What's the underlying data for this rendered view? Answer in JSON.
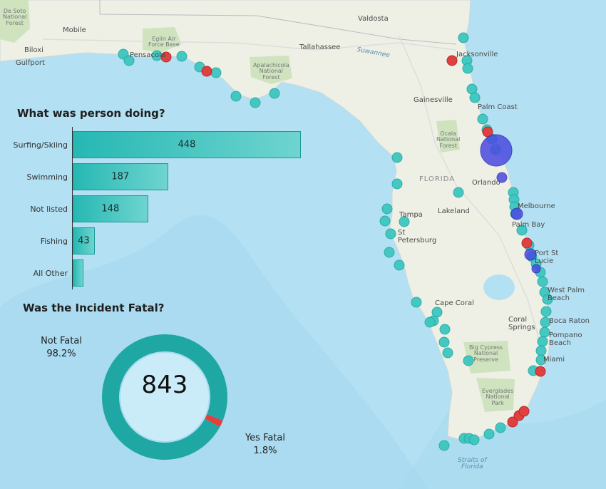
{
  "map": {
    "labels": {
      "de_soto": "De Soto\nNational\nForest",
      "mobile": "Mobile",
      "biloxi": "Biloxi",
      "gulfport": "Gulfport",
      "eglin": "Eglin Air\nForce Base",
      "pensacola": "Pensacola",
      "tallahassee": "Tallahassee",
      "valdosta": "Valdosta",
      "suwannee": "Suwannee",
      "apalachicola": "Apalachicola\nNational\nForest",
      "jacksonville": "Jacksonville",
      "gainesville": "Gainesville",
      "palm_coast": "Palm Coast",
      "ocala": "Ocala\nNational\nForest",
      "florida": "FLORIDA",
      "orlando": "Orlando",
      "tampa": "Tampa",
      "lakeland": "Lakeland",
      "st_petersburg": "St\nPetersburg",
      "melbourne": "Melbourne",
      "palm_bay": "Palm Bay",
      "port_st_lucie": "Port St\nLucie",
      "west_palm_beach": "West Palm\nBeach",
      "boca_raton": "Boca Raton",
      "coral_springs": "Coral\nSprings",
      "pompano": "Pompano\nBeach",
      "miami": "Miami",
      "cape_coral": "Cape Coral",
      "big_cypress": "Big Cypress\nNational\nPreserve",
      "everglades": "Everglades\nNational\nPark",
      "straits": "Straits of\nFlorida"
    },
    "colors": {
      "water": "#b3e0f2",
      "land": "#eef0e6",
      "park": "#cfe3bf",
      "not_fatal_marker": "#3cc6c0",
      "fatal_marker": "#e0403f",
      "cluster_marker": "#4a4ae0"
    }
  },
  "activity_chart": {
    "title": "What was person doing?",
    "chart_data": {
      "type": "bar",
      "orientation": "horizontal",
      "categories": [
        "Surfing/Skiing",
        "Swimming",
        "Not listed",
        "Fishing",
        "All Other"
      ],
      "values": [
        448,
        187,
        148,
        43,
        21
      ],
      "value_labels": [
        "448",
        "187",
        "148",
        "43",
        ""
      ],
      "title": "What was person doing?",
      "bar_color": "#26b8b3"
    }
  },
  "fatal_chart": {
    "title": "Was the Incident Fatal?",
    "total": "843",
    "not_fatal_label": "Not Fatal",
    "not_fatal_pct": "98.2%",
    "fatal_label": "Yes Fatal",
    "fatal_pct": "1.8%",
    "chart_data": {
      "type": "pie",
      "categories": [
        "Not Fatal",
        "Yes Fatal"
      ],
      "values": [
        98.2,
        1.8
      ],
      "colors": [
        "#1fa8a3",
        "#e0403f"
      ],
      "title": "Was the Incident Fatal?"
    }
  }
}
